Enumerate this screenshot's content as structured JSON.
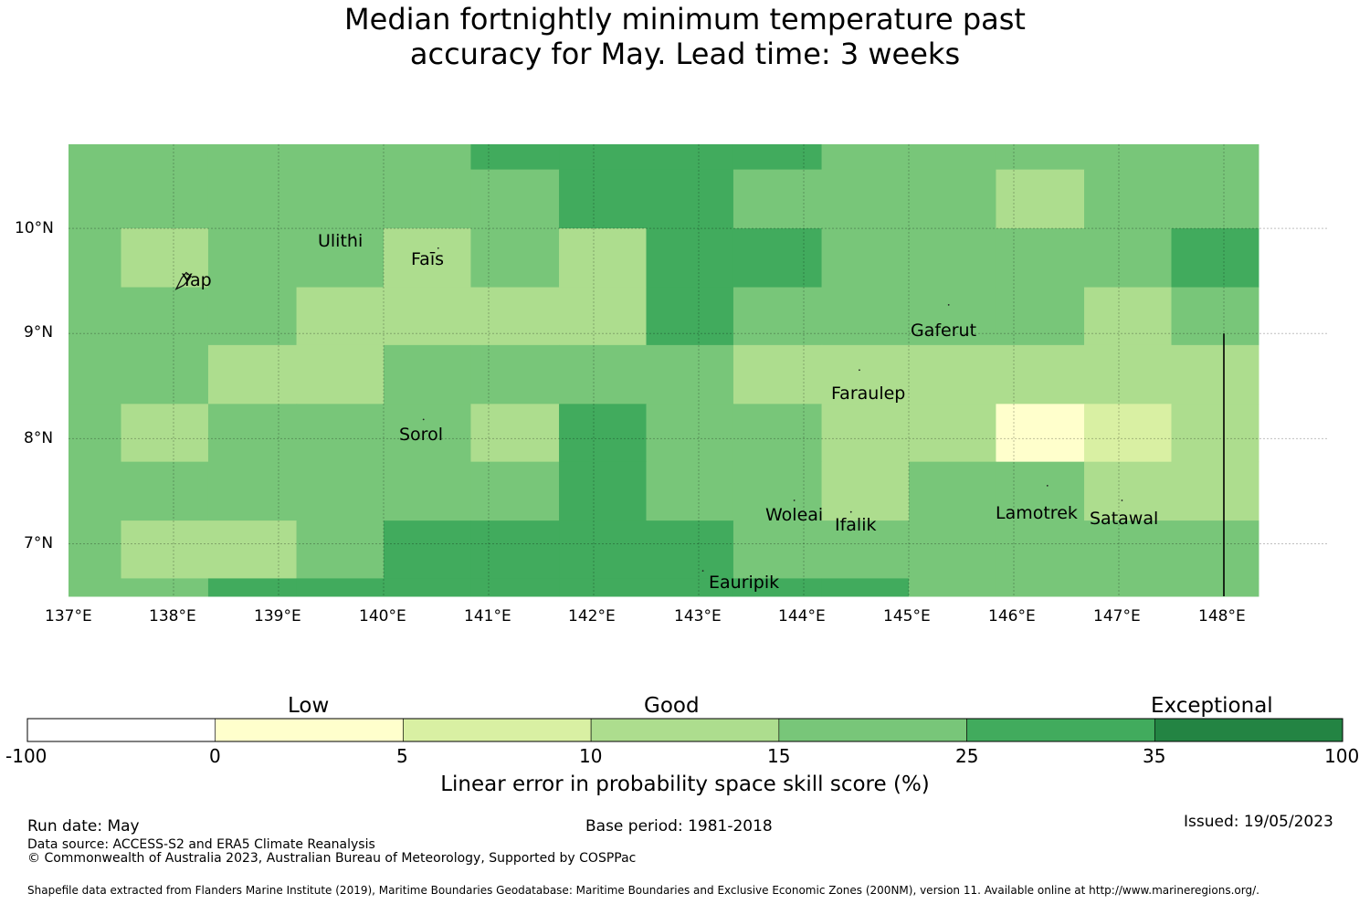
{
  "title_lines": [
    "Median fortnightly minimum temperature past",
    "accuracy for May. Lead time: 3 weeks"
  ],
  "map": {
    "lon_range": [
      137,
      149
    ],
    "lat_range": [
      6.5,
      10.8
    ],
    "lon_ticks": [
      "137°E",
      "138°E",
      "139°E",
      "140°E",
      "141°E",
      "142°E",
      "143°E",
      "144°E",
      "145°E",
      "146°E",
      "147°E",
      "148°E"
    ],
    "lat_ticks": [
      "10°N",
      "9°N",
      "8°N",
      "7°N"
    ],
    "cell_lons": [
      137.0,
      137.5,
      138.33,
      139.17,
      140.0,
      140.83,
      141.67,
      142.5,
      143.33,
      144.17,
      145.0,
      145.83,
      146.67,
      147.5,
      148.33,
      149.0
    ],
    "cell_lats": [
      10.8,
      10.56,
      10.0,
      9.44,
      8.89,
      8.33,
      7.78,
      7.22,
      6.67,
      6.5
    ],
    "grid_classes": [
      [
        4,
        4,
        4,
        4,
        4,
        5,
        5,
        5,
        5,
        4,
        4,
        4,
        4,
        4
      ],
      [
        4,
        4,
        4,
        4,
        4,
        4,
        5,
        5,
        4,
        4,
        4,
        3,
        4,
        4
      ],
      [
        4,
        3,
        4,
        4,
        3,
        4,
        3,
        5,
        5,
        4,
        4,
        4,
        4,
        5
      ],
      [
        4,
        4,
        4,
        3,
        3,
        3,
        3,
        5,
        4,
        4,
        4,
        4,
        3,
        4
      ],
      [
        4,
        4,
        3,
        3,
        4,
        4,
        4,
        4,
        3,
        3,
        3,
        3,
        3,
        3
      ],
      [
        4,
        3,
        4,
        4,
        4,
        3,
        5,
        4,
        4,
        3,
        3,
        1,
        2,
        3
      ],
      [
        4,
        4,
        4,
        4,
        4,
        4,
        5,
        4,
        4,
        3,
        4,
        4,
        3,
        3
      ],
      [
        4,
        3,
        3,
        4,
        5,
        5,
        5,
        5,
        4,
        4,
        4,
        4,
        4,
        4
      ],
      [
        4,
        4,
        5,
        5,
        5,
        5,
        5,
        5,
        5,
        5,
        4,
        4,
        4,
        4
      ]
    ],
    "eez_boundary_lon": 148.0,
    "eez_boundary_lat_top": 9.0,
    "places": [
      {
        "name": "Ulithi",
        "lon": 139.72,
        "lat": 9.87
      },
      {
        "name": "Faīs",
        "lon": 140.52,
        "lat": 9.76
      },
      {
        "name": "Yap",
        "lon": 138.13,
        "lat": 9.51
      },
      {
        "name": "Gaferut",
        "lon": 145.38,
        "lat": 9.22
      },
      {
        "name": "Faraulep",
        "lon": 144.53,
        "lat": 8.6
      },
      {
        "name": "Sorol",
        "lon": 140.38,
        "lat": 8.13
      },
      {
        "name": "Woleai",
        "lon": 143.91,
        "lat": 7.36
      },
      {
        "name": "Ifalik",
        "lon": 144.45,
        "lat": 7.25
      },
      {
        "name": "Lamotrek",
        "lon": 146.32,
        "lat": 7.5
      },
      {
        "name": "Satawal",
        "lon": 147.03,
        "lat": 7.36
      },
      {
        "name": "Eauripik",
        "lon": 143.04,
        "lat": 6.69
      }
    ]
  },
  "legend": {
    "category_labels": [
      "Low",
      "Good",
      "Exceptional"
    ],
    "colors": [
      "#ffffff",
      "#ffffcc",
      "#d9f0a3",
      "#addd8e",
      "#78c679",
      "#41ab5d",
      "#238443"
    ],
    "ticks": [
      "-100",
      "0",
      "5",
      "10",
      "15",
      "25",
      "35",
      "100"
    ],
    "title": "Linear error in probability space skill score (%)"
  },
  "footer": {
    "run_date": "Run date: May",
    "base_period": "Base period: 1981-2018",
    "issued": "Issued: 19/05/2023",
    "data_source": "Data source: ACCESS-S2 and ERA5 Climate Reanalysis",
    "copyright": "© Commonwealth of Australia 2023, Australian Bureau of Meteorology, Supported by COSPPac",
    "shapefile": "Shapefile data extracted from Flanders Marine Institute (2019), Maritime Boundaries Geodatabase: Maritime Boundaries and Exclusive Economic Zones (200NM), version 11. Available online at http://www.marineregions.org/."
  }
}
